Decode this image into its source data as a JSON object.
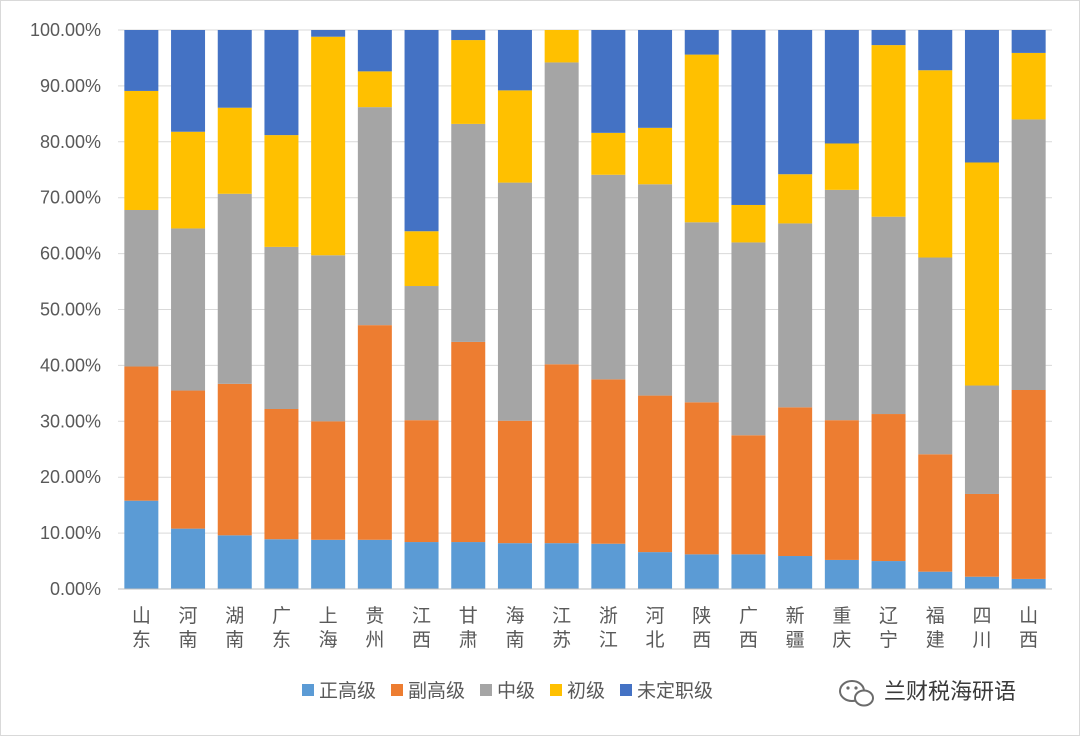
{
  "chart_data": {
    "type": "bar",
    "stacked": true,
    "percent": true,
    "categories": [
      "山东",
      "河南",
      "湖南",
      "广东",
      "上海",
      "贵州",
      "江西",
      "甘肃",
      "海南",
      "江苏",
      "浙江",
      "河北",
      "陕西",
      "广西",
      "新疆",
      "重庆",
      "辽宁",
      "福建",
      "四川",
      "山西"
    ],
    "series": [
      {
        "name": "正高级",
        "color": "#5b9bd5",
        "values": [
          15.8,
          10.8,
          9.6,
          8.9,
          8.8,
          8.8,
          8.4,
          8.4,
          8.2,
          8.2,
          8.1,
          6.6,
          6.2,
          6.2,
          5.9,
          5.2,
          5.0,
          3.1,
          2.2,
          1.8
        ]
      },
      {
        "name": "副高级",
        "color": "#ed7d31",
        "values": [
          24.0,
          24.7,
          27.1,
          23.3,
          21.2,
          38.4,
          21.8,
          35.8,
          21.9,
          32.0,
          29.4,
          28.0,
          27.2,
          21.3,
          26.6,
          25.0,
          26.3,
          21.0,
          14.8,
          33.8
        ]
      },
      {
        "name": "中级",
        "color": "#a5a5a5",
        "values": [
          28.0,
          29.0,
          34.0,
          29.0,
          29.7,
          39.0,
          24.0,
          39.0,
          42.6,
          54.0,
          36.6,
          37.8,
          32.2,
          34.5,
          32.9,
          41.2,
          35.3,
          35.2,
          19.4,
          48.4
        ]
      },
      {
        "name": "初级",
        "color": "#ffc000",
        "values": [
          21.3,
          17.3,
          15.4,
          20.0,
          39.1,
          6.4,
          9.8,
          15.0,
          16.5,
          5.8,
          7.5,
          10.1,
          30.0,
          6.7,
          8.8,
          8.3,
          30.7,
          33.5,
          39.9,
          11.9
        ]
      },
      {
        "name": "未定职级",
        "color": "#4472c4",
        "values": [
          10.9,
          18.2,
          13.9,
          18.8,
          1.2,
          7.4,
          36.0,
          1.8,
          10.8,
          0.0,
          18.4,
          17.5,
          4.4,
          31.3,
          25.8,
          20.3,
          2.7,
          7.2,
          23.7,
          4.1
        ]
      }
    ],
    "ylim": [
      0,
      100
    ],
    "yticks": [
      "0.00%",
      "10.00%",
      "20.00%",
      "30.00%",
      "40.00%",
      "50.00%",
      "60.00%",
      "70.00%",
      "80.00%",
      "90.00%",
      "100.00%"
    ],
    "grid": true,
    "legend_position": "bottom"
  },
  "watermark": {
    "text": "兰财税海研语",
    "icon": "wechat-icon"
  }
}
